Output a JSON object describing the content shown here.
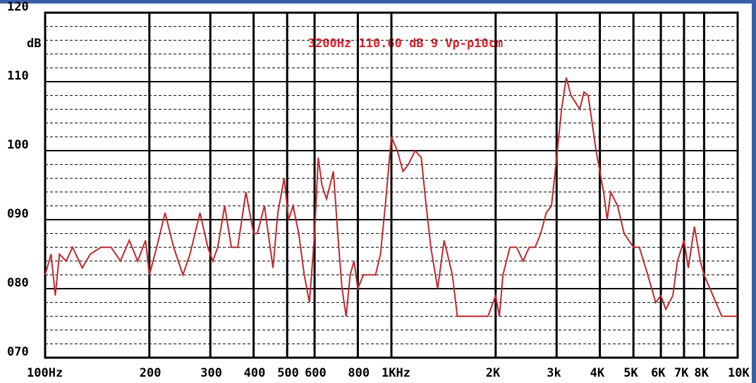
{
  "chart_data": {
    "type": "line",
    "ylabel": "dB",
    "annotation": "3200Hz  110.60 dB   9 Vp-p10cm",
    "x": [
      100,
      104,
      107,
      110,
      115,
      120,
      128,
      135,
      145,
      155,
      165,
      175,
      185,
      195,
      200,
      210,
      222,
      235,
      250,
      262,
      280,
      295,
      305,
      315,
      330,
      345,
      360,
      380,
      400,
      410,
      430,
      455,
      470,
      490,
      505,
      520,
      540,
      560,
      580,
      600,
      615,
      630,
      650,
      680,
      700,
      720,
      740,
      760,
      780,
      800,
      830,
      860,
      900,
      930,
      960,
      1000,
      1040,
      1080,
      1120,
      1170,
      1220,
      1260,
      1300,
      1360,
      1420,
      1500,
      1550,
      1600,
      1700,
      1800,
      1900,
      2000,
      2050,
      2100,
      2200,
      2300,
      2400,
      2500,
      2600,
      2700,
      2800,
      2900,
      3000,
      3100,
      3200,
      3300,
      3400,
      3500,
      3600,
      3700,
      3800,
      3900,
      4000,
      4100,
      4200,
      4300,
      4500,
      4700,
      5000,
      5200,
      5500,
      5800,
      6000,
      6200,
      6500,
      6700,
      7000,
      7200,
      7500,
      7800,
      8000,
      9000,
      10000
    ],
    "values": [
      82,
      85,
      79,
      85,
      84,
      86,
      83,
      85,
      86,
      86,
      84,
      87,
      84,
      87,
      82,
      86,
      91,
      86,
      82,
      85,
      91,
      86,
      84,
      86,
      92,
      86,
      86,
      94,
      88,
      88,
      92,
      83,
      91,
      96,
      90,
      92,
      88,
      82,
      78,
      88,
      99,
      95,
      93,
      97,
      88,
      80,
      76,
      82,
      84,
      80,
      82,
      82,
      82,
      85,
      92,
      102,
      100,
      97,
      98,
      100,
      99,
      92,
      86,
      80,
      87,
      82,
      76,
      76,
      76,
      76,
      76,
      79,
      76,
      82,
      86,
      86,
      84,
      86,
      86,
      88,
      91,
      92,
      99,
      106,
      110.6,
      108,
      107,
      106,
      108.5,
      108,
      104,
      100,
      97,
      94,
      90,
      94,
      92,
      88,
      86,
      86,
      82,
      78,
      79,
      77,
      79,
      84,
      87,
      83,
      89,
      84,
      82,
      76,
      76
    ],
    "color": "#c0282d",
    "xscale": "log",
    "xlim": [
      100,
      10000
    ],
    "ylim": [
      70,
      120
    ],
    "xticks": [
      {
        "value": 100,
        "label": "100Hz"
      },
      200,
      300,
      400,
      500,
      600,
      800,
      {
        "value": 1000,
        "label": "1KHz"
      },
      {
        "value": 2000,
        "label": "2K"
      },
      {
        "value": 3000,
        "label": "3k"
      },
      {
        "value": 4000,
        "label": "4K"
      },
      {
        "value": 5000,
        "label": "5K"
      },
      {
        "value": 6000,
        "label": "6K"
      },
      {
        "value": 7000,
        "label": "7K"
      },
      {
        "value": 8000,
        "label": "8K"
      },
      {
        "value": 10000,
        "label": "10K"
      }
    ],
    "yticks": [
      {
        "value": 70,
        "label": "070"
      },
      {
        "value": 80,
        "label": "080"
      },
      {
        "value": 90,
        "label": "090"
      },
      100,
      110,
      120
    ],
    "yminor": [
      72,
      74,
      76,
      78,
      82,
      84,
      86,
      88,
      92,
      94,
      96,
      98,
      102,
      104,
      106,
      108,
      112,
      114,
      116,
      118
    ],
    "grid": true
  }
}
